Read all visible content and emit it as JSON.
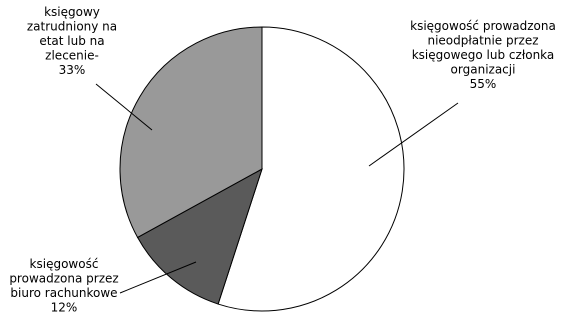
{
  "chart_data": {
    "type": "pie",
    "slices": [
      {
        "label_lines": [
          "księgowość prowadzona",
          "nieodpłatnie przez",
          "księgowego lub członka",
          "organizacji"
        ],
        "percent_label": "55%",
        "value": 55,
        "color": "#ffffff"
      },
      {
        "label_lines": [
          "księgowość",
          "prowadzona przez",
          "biuro rachunkowe"
        ],
        "percent_label": "12%",
        "value": 12,
        "color": "#5a5a5a"
      },
      {
        "label_lines": [
          "księgowy",
          "zatrudniony na",
          "etat lub na",
          "zlecenie-"
        ],
        "percent_label": "33%",
        "value": 33,
        "color": "#999999"
      }
    ],
    "start_angle": "12 o'clock",
    "direction": "clockwise"
  }
}
